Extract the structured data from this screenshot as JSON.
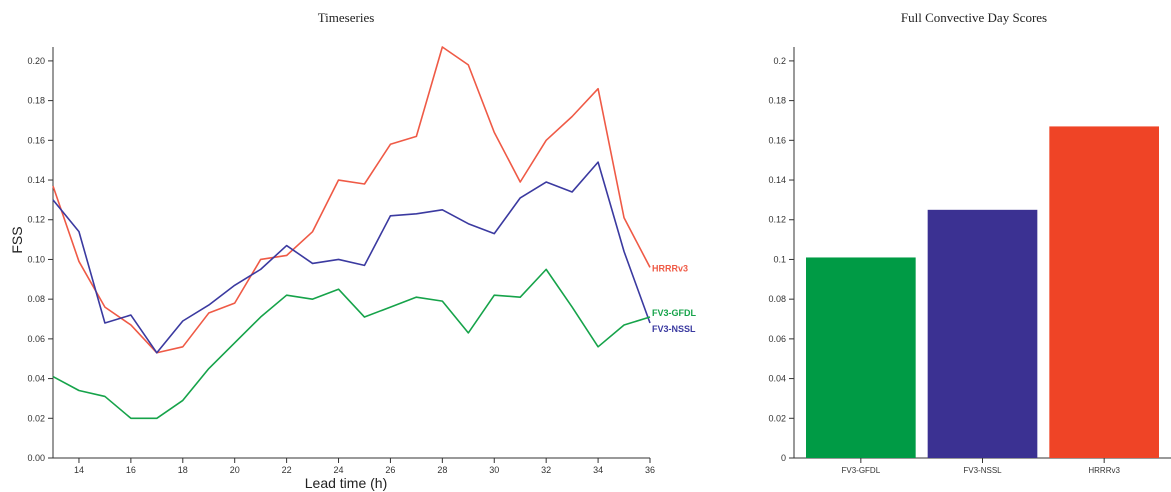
{
  "chart_data": [
    {
      "type": "line",
      "title": "Timeseries",
      "xlabel": "Lead time (h)",
      "ylabel": "FSS",
      "xlim": [
        13,
        36
      ],
      "ylim": [
        0,
        0.207
      ],
      "xticks": [
        14,
        16,
        18,
        20,
        22,
        24,
        26,
        28,
        30,
        32,
        34,
        36
      ],
      "yticks": [
        0.0,
        0.02,
        0.04,
        0.06,
        0.08,
        0.1,
        0.12,
        0.14,
        0.16,
        0.18,
        0.2
      ],
      "x": [
        13,
        14,
        15,
        16,
        17,
        18,
        19,
        20,
        21,
        22,
        23,
        24,
        25,
        26,
        27,
        28,
        29,
        30,
        31,
        32,
        33,
        34,
        35,
        36
      ],
      "series": [
        {
          "name": "HRRRv3",
          "color": "#ef5a46",
          "values": [
            0.137,
            0.099,
            0.076,
            0.067,
            0.053,
            0.056,
            0.073,
            0.078,
            0.1,
            0.102,
            0.114,
            0.14,
            0.138,
            0.158,
            0.162,
            0.207,
            0.198,
            0.164,
            0.139,
            0.16,
            0.172,
            0.186,
            0.121,
            0.096
          ]
        },
        {
          "name": "FV3-NSSL",
          "color": "#3b3aa0",
          "values": [
            0.13,
            0.114,
            0.068,
            0.072,
            0.053,
            0.069,
            0.077,
            0.087,
            0.095,
            0.107,
            0.098,
            0.1,
            0.097,
            0.122,
            0.123,
            0.125,
            0.118,
            0.113,
            0.131,
            0.139,
            0.134,
            0.149,
            0.104,
            0.068
          ]
        },
        {
          "name": "FV3-GFDL",
          "color": "#16a34a",
          "values": [
            0.041,
            0.034,
            0.031,
            0.02,
            0.02,
            0.029,
            0.045,
            0.058,
            0.071,
            0.082,
            0.08,
            0.085,
            0.071,
            0.076,
            0.081,
            0.079,
            0.063,
            0.082,
            0.081,
            0.095,
            0.076,
            0.056,
            0.067,
            0.071
          ]
        }
      ]
    },
    {
      "type": "bar",
      "title": "Full Convective Day Scores",
      "categories": [
        "FV3-GFDL",
        "FV3-NSSL",
        "HRRRv3"
      ],
      "values": [
        0.101,
        0.125,
        0.167
      ],
      "colors": [
        "#009b45",
        "#3b3192",
        "#ef4426"
      ],
      "ylim": [
        0,
        0.207
      ],
      "yticks": [
        "0",
        "0.02",
        "0.04",
        "0.06",
        "0.08",
        "0.1",
        "0.12",
        "0.14",
        "0.16",
        "0.18",
        "0.2"
      ],
      "xlabel": "",
      "ylabel": ""
    }
  ]
}
